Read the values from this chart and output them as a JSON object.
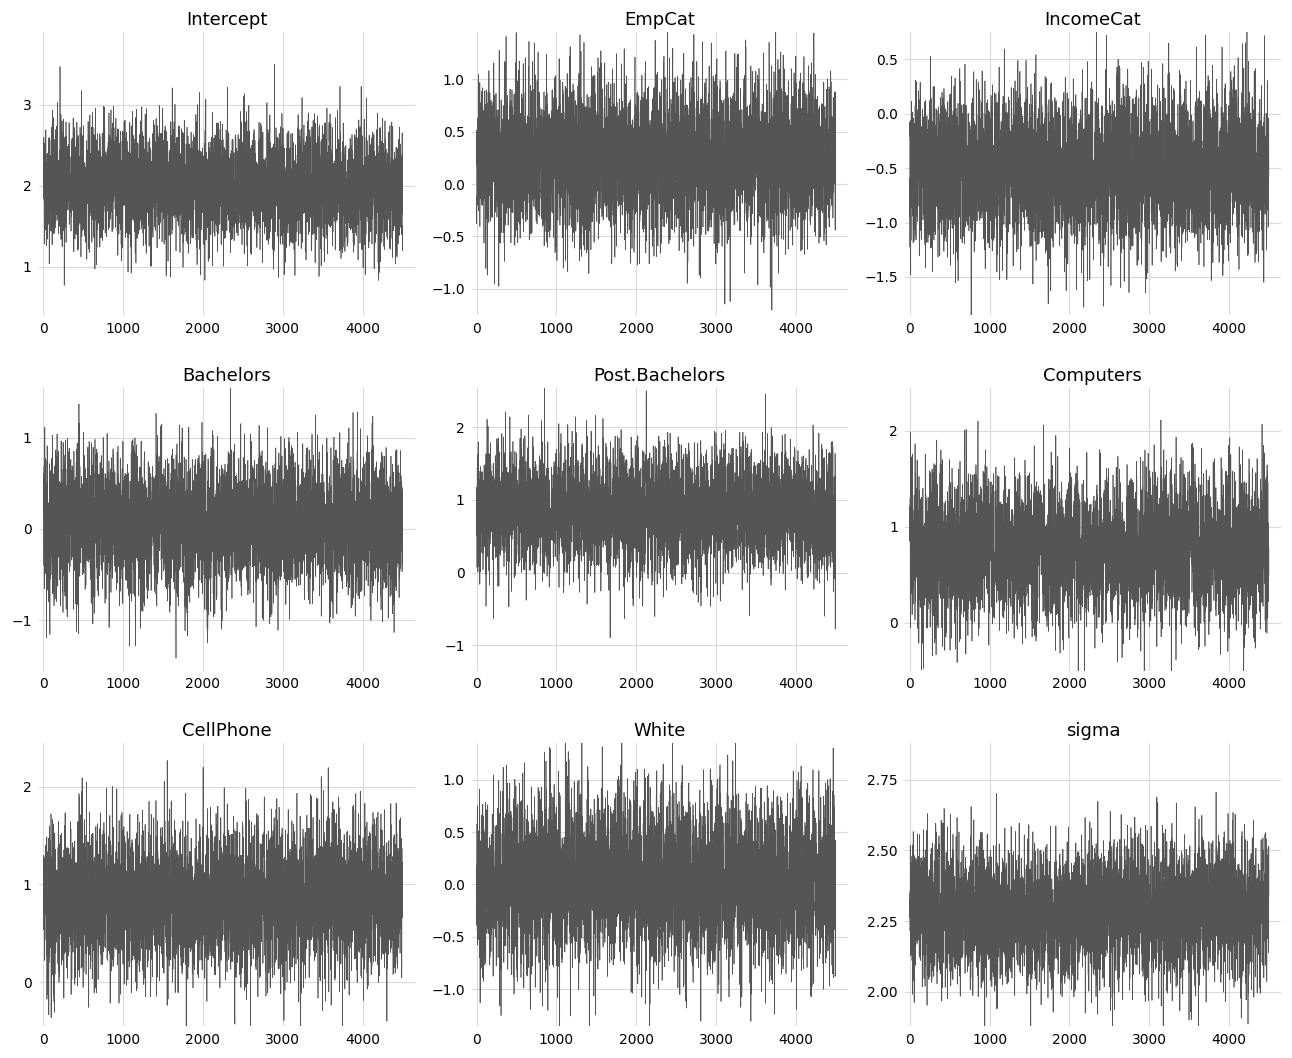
{
  "titles": [
    "Intercept",
    "EmpCat",
    "IncomeCat",
    "Bachelors",
    "Post.Bachelors",
    "Computers",
    "CellPhone",
    "White",
    "sigma"
  ],
  "n_draws": 4500,
  "params": {
    "Intercept": {
      "mean": 2.0,
      "std": 0.38,
      "ylim": [
        0.4,
        3.9
      ],
      "yticks": [
        1,
        2,
        3
      ]
    },
    "EmpCat": {
      "mean": 0.25,
      "std": 0.38,
      "ylim": [
        -1.25,
        1.45
      ],
      "yticks": [
        -1.0,
        -0.5,
        0.0,
        0.5,
        1.0
      ]
    },
    "IncomeCat": {
      "mean": -0.5,
      "std": 0.38,
      "ylim": [
        -1.85,
        0.75
      ],
      "yticks": [
        -1.5,
        -1.0,
        -0.5,
        0.0,
        0.5
      ]
    },
    "Bachelors": {
      "mean": 0.05,
      "std": 0.4,
      "ylim": [
        -1.55,
        1.55
      ],
      "yticks": [
        -1,
        0,
        1
      ]
    },
    "Post.Bachelors": {
      "mean": 0.85,
      "std": 0.45,
      "ylim": [
        -1.35,
        2.55
      ],
      "yticks": [
        -1,
        0,
        1,
        2
      ]
    },
    "Computers": {
      "mean": 0.75,
      "std": 0.42,
      "ylim": [
        -0.5,
        2.45
      ],
      "yticks": [
        0,
        1,
        2
      ]
    },
    "CellPhone": {
      "mean": 0.85,
      "std": 0.4,
      "ylim": [
        -0.45,
        2.45
      ],
      "yticks": [
        0,
        1,
        2
      ]
    },
    "White": {
      "mean": 0.05,
      "std": 0.42,
      "ylim": [
        -1.35,
        1.35
      ],
      "yticks": [
        -1.0,
        -0.5,
        0.0,
        0.5,
        1.0
      ]
    },
    "sigma": {
      "mean": 2.28,
      "std": 0.13,
      "ylim": [
        1.88,
        2.88
      ],
      "yticks": [
        2.0,
        2.25,
        2.5,
        2.75
      ]
    }
  },
  "line_color": "#555555",
  "line_width": 0.5,
  "bg_color": "#ffffff",
  "grid_color": "#d9d9d9",
  "title_fontsize": 13,
  "tick_fontsize": 10,
  "xticks": [
    0,
    1000,
    2000,
    3000,
    4000
  ],
  "xlim": [
    -60,
    4650
  ],
  "seed": 42,
  "ar_coef": 0.05
}
